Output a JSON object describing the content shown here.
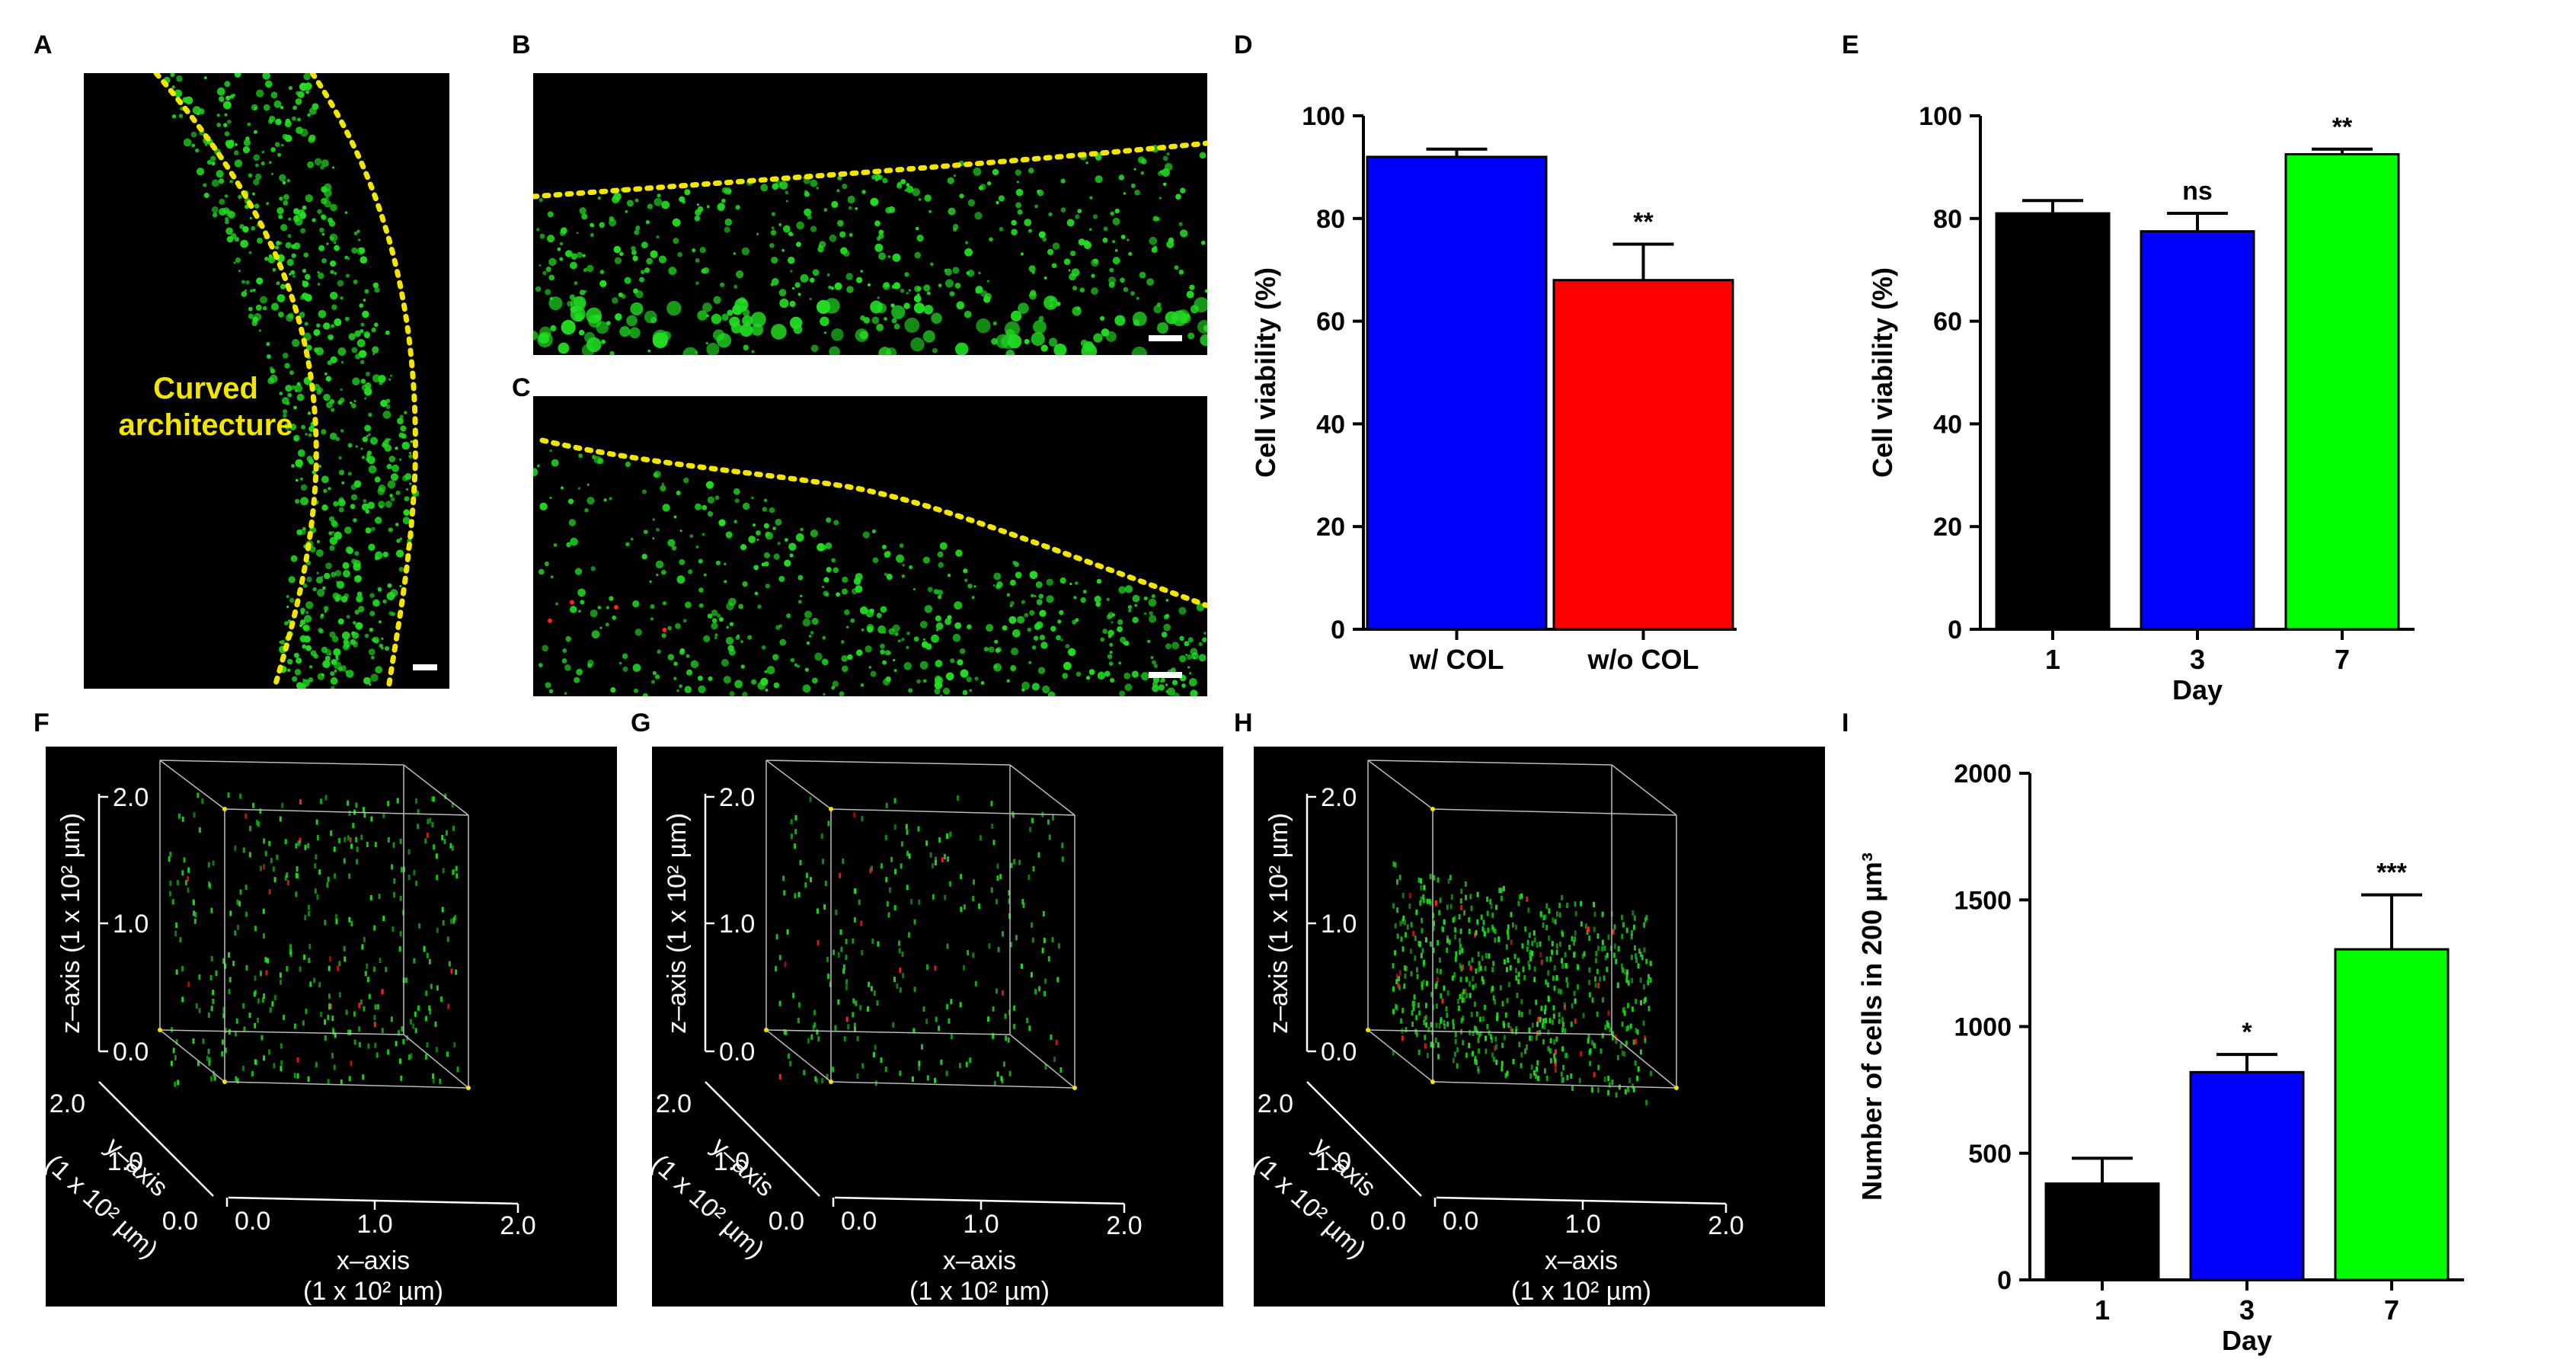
{
  "panel_letters": [
    "A",
    "B",
    "C",
    "D",
    "E",
    "F",
    "G",
    "H",
    "I"
  ],
  "panel_a": {
    "label_line1": "Curved",
    "label_line2": "architecture"
  },
  "colors": {
    "blue": "#0000ff",
    "red": "#ff0000",
    "black": "#000000",
    "green": "#00ff00",
    "dotted_boundary": "#f2e600",
    "live_cells": "#22dd22",
    "dead_cells": "#ff2222"
  },
  "chart_data": [
    {
      "id": "D",
      "type": "bar",
      "title": "",
      "categories": [
        "w/ COL",
        "w/o COL"
      ],
      "values": [
        92,
        68
      ],
      "errors": [
        1.5,
        7
      ],
      "significance": [
        "",
        "**"
      ],
      "colors": [
        "#0000ff",
        "#ff0000"
      ],
      "xlabel": "",
      "ylabel": "Cell viability (%)",
      "ylim": [
        0,
        100
      ],
      "yticks": [
        "0",
        "20",
        "40",
        "60",
        "80",
        "100"
      ]
    },
    {
      "id": "E",
      "type": "bar",
      "title": "",
      "categories": [
        "1",
        "3",
        "7"
      ],
      "values": [
        81,
        77.5,
        92.5
      ],
      "errors": [
        2.5,
        3.5,
        1
      ],
      "significance": [
        "",
        "ns",
        "**"
      ],
      "colors": [
        "#000000",
        "#0000ff",
        "#00ff00"
      ],
      "xlabel": "Day",
      "ylabel": "Cell viability (%)",
      "ylim": [
        0,
        100
      ],
      "yticks": [
        "0",
        "20",
        "40",
        "60",
        "80",
        "100"
      ]
    },
    {
      "id": "I",
      "type": "bar",
      "title": "",
      "categories": [
        "1",
        "3",
        "7"
      ],
      "values": [
        380,
        820,
        1305
      ],
      "errors": [
        100,
        70,
        215
      ],
      "significance": [
        "",
        "*",
        "***"
      ],
      "colors": [
        "#000000",
        "#0000ff",
        "#00ff00"
      ],
      "xlabel": "Day",
      "ylabel": "Number of cells in 200 µm³",
      "ylim": [
        0,
        2000
      ],
      "yticks": [
        "0",
        "500",
        "1000",
        "1500",
        "2000"
      ]
    }
  ],
  "volume_axes": {
    "z_label": "z–axis (1 x 10² µm)",
    "y_label_line1": "y–axis",
    "y_label_line2": "(1 x 10² µm)",
    "x_label_line1": "x–axis",
    "x_label_line2": "(1 x 10² µm)",
    "z_ticks": [
      "2.0",
      "1.0",
      "0.0"
    ],
    "y_ticks": [
      "2.0",
      "1.0",
      "0.0"
    ],
    "x_ticks": [
      "0.0",
      "1.0",
      "2.0"
    ]
  }
}
